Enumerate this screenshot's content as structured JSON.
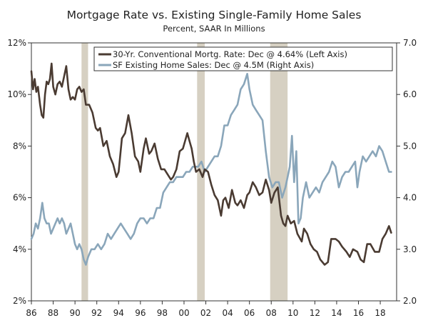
{
  "chart_data": {
    "type": "line",
    "title": "Mortgage Rate vs. Existing Single-Family Home Sales",
    "subtitle": "Percent, SAAR In Millions",
    "xlim": [
      1986,
      2019.5
    ],
    "x_ticks": [
      1986,
      1988,
      1990,
      1992,
      1994,
      1996,
      1998,
      2000,
      2002,
      2004,
      2006,
      2008,
      2010,
      2012,
      2014,
      2016,
      2018
    ],
    "x_tick_labels": [
      "86",
      "88",
      "90",
      "92",
      "94",
      "96",
      "98",
      "00",
      "02",
      "04",
      "06",
      "08",
      "10",
      "12",
      "14",
      "16",
      "18"
    ],
    "y_left": {
      "lim": [
        2,
        12
      ],
      "ticks": [
        2,
        4,
        6,
        8,
        10,
        12
      ],
      "tick_labels": [
        "2%",
        "4%",
        "6%",
        "8%",
        "10%",
        "12%"
      ]
    },
    "y_right": {
      "lim": [
        2.0,
        7.0
      ],
      "ticks": [
        2.0,
        3.0,
        4.0,
        5.0,
        6.0,
        7.0
      ],
      "tick_labels": [
        "2.0",
        "3.0",
        "4.0",
        "5.0",
        "6.0",
        "7.0"
      ]
    },
    "recessions": [
      [
        1990.6,
        1991.2
      ],
      [
        2001.2,
        2001.9
      ],
      [
        2007.9,
        2009.5
      ]
    ],
    "colors": {
      "rate": "#4a3b32",
      "sales": "#8aa6ba",
      "recession": "#d6d0c2",
      "axis": "#333333"
    },
    "series": [
      {
        "name": "30-Yr. Conventional Mortg. Rate: Dec @ 4.64% (Left Axis)",
        "axis": "left",
        "points": [
          [
            1986.0,
            10.9
          ],
          [
            1986.15,
            10.2
          ],
          [
            1986.3,
            10.6
          ],
          [
            1986.45,
            10.1
          ],
          [
            1986.6,
            10.3
          ],
          [
            1986.8,
            9.6
          ],
          [
            1986.95,
            9.2
          ],
          [
            1987.1,
            9.1
          ],
          [
            1987.25,
            10.0
          ],
          [
            1987.4,
            10.5
          ],
          [
            1987.55,
            10.4
          ],
          [
            1987.7,
            10.6
          ],
          [
            1987.85,
            11.2
          ],
          [
            1988.0,
            10.3
          ],
          [
            1988.2,
            10.0
          ],
          [
            1988.4,
            10.4
          ],
          [
            1988.6,
            10.5
          ],
          [
            1988.8,
            10.3
          ],
          [
            1989.0,
            10.7
          ],
          [
            1989.2,
            11.1
          ],
          [
            1989.4,
            10.2
          ],
          [
            1989.6,
            9.8
          ],
          [
            1989.8,
            9.9
          ],
          [
            1990.0,
            9.8
          ],
          [
            1990.2,
            10.2
          ],
          [
            1990.4,
            10.3
          ],
          [
            1990.6,
            10.1
          ],
          [
            1990.8,
            10.2
          ],
          [
            1991.0,
            9.6
          ],
          [
            1991.3,
            9.6
          ],
          [
            1991.6,
            9.3
          ],
          [
            1991.9,
            8.7
          ],
          [
            1992.1,
            8.6
          ],
          [
            1992.3,
            8.7
          ],
          [
            1992.6,
            8.0
          ],
          [
            1992.9,
            8.2
          ],
          [
            1993.2,
            7.6
          ],
          [
            1993.5,
            7.3
          ],
          [
            1993.8,
            6.8
          ],
          [
            1994.0,
            7.0
          ],
          [
            1994.3,
            8.3
          ],
          [
            1994.6,
            8.5
          ],
          [
            1994.9,
            9.2
          ],
          [
            1995.2,
            8.5
          ],
          [
            1995.5,
            7.6
          ],
          [
            1995.8,
            7.4
          ],
          [
            1996.0,
            7.0
          ],
          [
            1996.3,
            7.9
          ],
          [
            1996.5,
            8.3
          ],
          [
            1996.8,
            7.7
          ],
          [
            1997.0,
            7.8
          ],
          [
            1997.3,
            8.1
          ],
          [
            1997.6,
            7.5
          ],
          [
            1997.9,
            7.1
          ],
          [
            1998.2,
            7.1
          ],
          [
            1998.5,
            6.9
          ],
          [
            1998.8,
            6.7
          ],
          [
            1999.0,
            6.8
          ],
          [
            1999.3,
            7.1
          ],
          [
            1999.6,
            7.8
          ],
          [
            1999.9,
            7.9
          ],
          [
            2000.1,
            8.2
          ],
          [
            2000.3,
            8.5
          ],
          [
            2000.5,
            8.2
          ],
          [
            2000.7,
            7.9
          ],
          [
            2000.9,
            7.4
          ],
          [
            2001.1,
            7.0
          ],
          [
            2001.4,
            7.1
          ],
          [
            2001.7,
            6.8
          ],
          [
            2001.9,
            7.1
          ],
          [
            2002.2,
            7.0
          ],
          [
            2002.5,
            6.5
          ],
          [
            2002.8,
            6.1
          ],
          [
            2003.1,
            5.9
          ],
          [
            2003.4,
            5.3
          ],
          [
            2003.6,
            5.9
          ],
          [
            2003.8,
            6.0
          ],
          [
            2004.1,
            5.6
          ],
          [
            2004.4,
            6.3
          ],
          [
            2004.7,
            5.8
          ],
          [
            2004.9,
            5.7
          ],
          [
            2005.2,
            5.9
          ],
          [
            2005.5,
            5.6
          ],
          [
            2005.8,
            6.1
          ],
          [
            2006.0,
            6.2
          ],
          [
            2006.3,
            6.6
          ],
          [
            2006.6,
            6.4
          ],
          [
            2006.9,
            6.1
          ],
          [
            2007.2,
            6.2
          ],
          [
            2007.5,
            6.7
          ],
          [
            2007.8,
            6.3
          ],
          [
            2008.0,
            5.8
          ],
          [
            2008.3,
            6.2
          ],
          [
            2008.6,
            6.4
          ],
          [
            2008.9,
            5.3
          ],
          [
            2009.1,
            5.0
          ],
          [
            2009.3,
            4.9
          ],
          [
            2009.5,
            5.3
          ],
          [
            2009.8,
            5.0
          ],
          [
            2010.1,
            5.1
          ],
          [
            2010.4,
            4.6
          ],
          [
            2010.8,
            4.3
          ],
          [
            2011.0,
            4.8
          ],
          [
            2011.3,
            4.6
          ],
          [
            2011.6,
            4.2
          ],
          [
            2011.9,
            4.0
          ],
          [
            2012.2,
            3.9
          ],
          [
            2012.5,
            3.6
          ],
          [
            2012.9,
            3.4
          ],
          [
            2013.2,
            3.5
          ],
          [
            2013.5,
            4.4
          ],
          [
            2013.9,
            4.4
          ],
          [
            2014.2,
            4.3
          ],
          [
            2014.5,
            4.1
          ],
          [
            2014.9,
            3.9
          ],
          [
            2015.2,
            3.7
          ],
          [
            2015.5,
            4.0
          ],
          [
            2015.9,
            3.9
          ],
          [
            2016.2,
            3.6
          ],
          [
            2016.5,
            3.5
          ],
          [
            2016.8,
            4.2
          ],
          [
            2017.1,
            4.2
          ],
          [
            2017.5,
            3.9
          ],
          [
            2017.9,
            3.9
          ],
          [
            2018.2,
            4.4
          ],
          [
            2018.5,
            4.6
          ],
          [
            2018.8,
            4.9
          ],
          [
            2019.0,
            4.64
          ]
        ]
      },
      {
        "name": "SF Existing Home Sales: Dec @ 4.5M (Right Axis)",
        "axis": "right",
        "points": [
          [
            1986.0,
            3.2
          ],
          [
            1986.2,
            3.3
          ],
          [
            1986.4,
            3.5
          ],
          [
            1986.6,
            3.4
          ],
          [
            1986.8,
            3.6
          ],
          [
            1987.0,
            3.9
          ],
          [
            1987.2,
            3.6
          ],
          [
            1987.4,
            3.5
          ],
          [
            1987.6,
            3.5
          ],
          [
            1987.8,
            3.3
          ],
          [
            1988.0,
            3.4
          ],
          [
            1988.2,
            3.5
          ],
          [
            1988.4,
            3.6
          ],
          [
            1988.6,
            3.5
          ],
          [
            1988.8,
            3.6
          ],
          [
            1989.0,
            3.5
          ],
          [
            1989.2,
            3.3
          ],
          [
            1989.4,
            3.4
          ],
          [
            1989.6,
            3.5
          ],
          [
            1989.8,
            3.3
          ],
          [
            1990.0,
            3.1
          ],
          [
            1990.2,
            3.0
          ],
          [
            1990.4,
            3.1
          ],
          [
            1990.6,
            3.0
          ],
          [
            1990.8,
            2.8
          ],
          [
            1991.0,
            2.7
          ],
          [
            1991.2,
            2.85
          ],
          [
            1991.5,
            3.0
          ],
          [
            1991.8,
            3.0
          ],
          [
            1992.1,
            3.1
          ],
          [
            1992.4,
            3.0
          ],
          [
            1992.7,
            3.1
          ],
          [
            1993.0,
            3.3
          ],
          [
            1993.3,
            3.2
          ],
          [
            1993.6,
            3.3
          ],
          [
            1993.9,
            3.4
          ],
          [
            1994.2,
            3.5
          ],
          [
            1994.5,
            3.4
          ],
          [
            1994.8,
            3.3
          ],
          [
            1995.1,
            3.2
          ],
          [
            1995.4,
            3.3
          ],
          [
            1995.7,
            3.5
          ],
          [
            1996.0,
            3.6
          ],
          [
            1996.3,
            3.6
          ],
          [
            1996.6,
            3.5
          ],
          [
            1996.9,
            3.6
          ],
          [
            1997.2,
            3.6
          ],
          [
            1997.5,
            3.8
          ],
          [
            1997.8,
            3.8
          ],
          [
            1998.1,
            4.1
          ],
          [
            1998.4,
            4.2
          ],
          [
            1998.7,
            4.3
          ],
          [
            1999.0,
            4.3
          ],
          [
            1999.3,
            4.4
          ],
          [
            1999.6,
            4.4
          ],
          [
            1999.9,
            4.4
          ],
          [
            2000.2,
            4.5
          ],
          [
            2000.5,
            4.5
          ],
          [
            2000.8,
            4.6
          ],
          [
            2001.0,
            4.6
          ],
          [
            2001.3,
            4.6
          ],
          [
            2001.6,
            4.7
          ],
          [
            2001.9,
            4.5
          ],
          [
            2002.2,
            4.6
          ],
          [
            2002.5,
            4.7
          ],
          [
            2002.8,
            4.8
          ],
          [
            2003.1,
            4.8
          ],
          [
            2003.4,
            5.0
          ],
          [
            2003.7,
            5.4
          ],
          [
            2004.0,
            5.4
          ],
          [
            2004.3,
            5.6
          ],
          [
            2004.6,
            5.7
          ],
          [
            2004.9,
            5.8
          ],
          [
            2005.2,
            6.1
          ],
          [
            2005.5,
            6.2
          ],
          [
            2005.8,
            6.4
          ],
          [
            2006.0,
            6.1
          ],
          [
            2006.3,
            5.8
          ],
          [
            2006.6,
            5.7
          ],
          [
            2006.9,
            5.6
          ],
          [
            2007.2,
            5.5
          ],
          [
            2007.5,
            4.9
          ],
          [
            2007.8,
            4.4
          ],
          [
            2008.1,
            4.2
          ],
          [
            2008.4,
            4.3
          ],
          [
            2008.7,
            4.3
          ],
          [
            2009.0,
            4.0
          ],
          [
            2009.3,
            4.2
          ],
          [
            2009.5,
            4.4
          ],
          [
            2009.7,
            4.6
          ],
          [
            2009.9,
            5.2
          ],
          [
            2010.1,
            4.3
          ],
          [
            2010.3,
            4.9
          ],
          [
            2010.5,
            3.5
          ],
          [
            2010.7,
            3.6
          ],
          [
            2010.9,
            4.0
          ],
          [
            2011.2,
            4.3
          ],
          [
            2011.5,
            4.0
          ],
          [
            2011.8,
            4.1
          ],
          [
            2012.1,
            4.2
          ],
          [
            2012.4,
            4.1
          ],
          [
            2012.7,
            4.3
          ],
          [
            2013.0,
            4.4
          ],
          [
            2013.3,
            4.5
          ],
          [
            2013.6,
            4.7
          ],
          [
            2013.9,
            4.6
          ],
          [
            2014.2,
            4.2
          ],
          [
            2014.5,
            4.4
          ],
          [
            2014.8,
            4.5
          ],
          [
            2015.1,
            4.5
          ],
          [
            2015.4,
            4.6
          ],
          [
            2015.7,
            4.7
          ],
          [
            2015.9,
            4.2
          ],
          [
            2016.1,
            4.5
          ],
          [
            2016.4,
            4.8
          ],
          [
            2016.7,
            4.7
          ],
          [
            2017.0,
            4.8
          ],
          [
            2017.3,
            4.9
          ],
          [
            2017.6,
            4.8
          ],
          [
            2017.9,
            5.0
          ],
          [
            2018.2,
            4.9
          ],
          [
            2018.5,
            4.7
          ],
          [
            2018.8,
            4.5
          ],
          [
            2019.0,
            4.5
          ]
        ]
      }
    ]
  }
}
